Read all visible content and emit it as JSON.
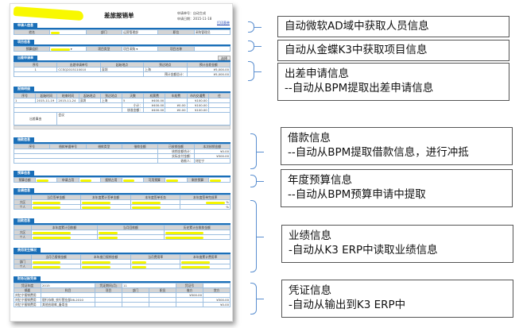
{
  "form": {
    "title": "差旅报销单",
    "apply_no": "申请单号：自动生成",
    "apply_date": "申请日期：2015-11-18",
    "print": "打印表单",
    "applicant": {
      "tab": "申请人信息",
      "name_label": "姓名",
      "dept_label": "部门",
      "dept": "运营管理部",
      "position_label": "职位",
      "position": "采购管理员"
    },
    "project": {
      "tab": "项目信息",
      "org_label": "预算组织",
      "type_label": "项目类型",
      "type": "项目采购",
      "name_label": "项目名称"
    },
    "trip_apply": {
      "tab": "出差申请单",
      "select": "选择",
      "headers": [
        "序号",
        "出差申请单号",
        "起始地点",
        "到达地点",
        "预计出差金额"
      ],
      "rows": [
        [
          "1",
          "CCSQ2015110010",
          "深圳",
          "上海",
          "¥5,000.00"
        ]
      ],
      "total_label": "预计金额总计：",
      "total": "¥5,000.00"
    },
    "expense": {
      "tab": "报销明细",
      "headers": [
        "序号",
        "起始时间",
        "结束时间",
        "起始地点",
        "到达地点",
        "天数",
        "机票费",
        "车船费",
        "市内交通费",
        "住"
      ],
      "rows": [
        [
          "1",
          "2015-11-19",
          "2015-11-24",
          "深圳",
          "上海",
          "5",
          "¥400.00",
          "",
          "¥100.00",
          ""
        ]
      ],
      "subtotal_label": "小计：",
      "subtotal": [
        "¥400.00",
        "¥0.00",
        "¥100.00"
      ],
      "approved_label": "核准金额：",
      "approved": [
        "¥400.00",
        "¥0.00",
        "¥100.00"
      ],
      "reason_label": "出差事由",
      "reason": "会议"
    },
    "loan": {
      "tab": "借款信息",
      "headers": [
        "序号",
        "借款单据单号",
        "借款类型",
        "借款金额",
        "已核销金额",
        "本次核销金额"
      ],
      "writeoff_label": "核销金额合计：",
      "writeoff": "¥0.00",
      "paid_label": "实际支付金额：",
      "paid": "¥500.00",
      "payee_label": "收款人：",
      "payee": "刘忆宁"
    },
    "budget": {
      "tab": "预算信息",
      "labels": [
        "预算总额",
        "申请占用",
        "报销占用",
        "可用预算",
        "剩余预算"
      ]
    },
    "performance": {
      "tab": "业绩信息",
      "headers": [
        "当月签单金额",
        "本年度累计签单金额",
        "本年度签单任务",
        "本年度签单完成率"
      ],
      "rows": [
        "大区",
        "个人"
      ],
      "pct": "%"
    },
    "receivable": {
      "tab": "回款信息",
      "headers": [
        "本年度累计回款额",
        "当月回款额",
        "历史累计应收款金额"
      ],
      "rows": [
        "大区",
        "个人"
      ]
    },
    "cost": {
      "tab": "费用发生情况",
      "headers": [
        "当月已报销金额",
        "本年度已报销金额",
        "当月费用率",
        "本年度累计费用率"
      ],
      "rows": [
        "部门",
        "个人"
      ]
    },
    "voucher": {
      "tab": "财务记账凭单",
      "year_label": "凭证年度",
      "year": "2015",
      "period_label": "凭证期间(月)",
      "period": "11",
      "no_label": "凭证号",
      "headers": [
        "摘要",
        "科目",
        "项目",
        "部门",
        "职员",
        "借方",
        "贷方"
      ],
      "rows": [
        [
          "刘忆宁报销费用",
          "",
          "",
          "",
          "",
          "¥500.00",
          ""
        ],
        [
          "刘忆宁报销费用",
          "银行存款_农行营业部06-2010",
          "",
          "",
          "",
          "",
          "¥500.00"
        ],
        [
          "刘忆宁报销费用",
          "其他应收款_备用金",
          "",
          "",
          "",
          "",
          "¥0.00"
        ]
      ]
    }
  },
  "annotations": [
    {
      "line1": "自动微软AD域中获取人员信息"
    },
    {
      "line1": "自动从金蝶K3中获取项目信息"
    },
    {
      "line1": "出差申请信息",
      "line2": "--自动从BPM提取出差申请信息"
    },
    {
      "line1": "借款信息",
      "line2": "--自动从BPM提取借款信息，进行冲抵"
    },
    {
      "line1": "年度预算信息",
      "line2": "--自动从BPM预算申请中提取"
    },
    {
      "line1": "业绩信息",
      "line2": "-自动从K3 ERP中读取业绩信息"
    },
    {
      "line1": "凭证信息",
      "line2": "-自动从输出到K3 ERP中"
    }
  ],
  "colors": {
    "accent": "#1a6fb8",
    "highlight": "#f5f500",
    "brace": "#5b8fd0"
  }
}
